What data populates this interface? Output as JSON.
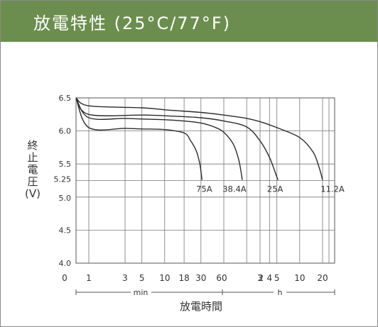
{
  "header": {
    "title": "放電特性 (25°C/77°F)",
    "background": "#6b8e4e"
  },
  "chart_data": {
    "type": "line",
    "title": "放電特性 (25°C/77°F)",
    "ylabel": [
      "終",
      "止",
      "電",
      "圧",
      "(V)"
    ],
    "xlabel": "放電時間",
    "y_ticks": [
      "4.0",
      "4.5",
      "5.0",
      "5.25",
      "5.5",
      "6.0",
      "6.5"
    ],
    "ylim": [
      4.0,
      6.5
    ],
    "x_origin_label": "0",
    "x_ticks": [
      "1",
      "3",
      "5",
      "10",
      "18",
      "30",
      "60",
      "2",
      "3",
      "4",
      "5",
      "10",
      "20"
    ],
    "x_ticks_minutes": [
      1,
      3,
      5,
      10,
      18,
      30,
      60
    ],
    "x_ticks_hours": [
      2,
      3,
      4,
      5,
      10,
      20
    ],
    "unit_min": "min",
    "unit_h": "h",
    "grid": true,
    "series": [
      {
        "name": "75A",
        "points": [
          [
            0,
            6.5
          ],
          [
            1,
            6.05
          ],
          [
            3,
            6.04
          ],
          [
            5,
            6.03
          ],
          [
            10,
            6.02
          ],
          [
            18,
            5.97
          ],
          [
            22,
            5.85
          ],
          [
            26,
            5.7
          ],
          [
            29,
            5.5
          ],
          [
            31,
            5.26
          ]
        ]
      },
      {
        "name": "38.4A",
        "points": [
          [
            0,
            6.5
          ],
          [
            1,
            6.2
          ],
          [
            3,
            6.19
          ],
          [
            5,
            6.18
          ],
          [
            10,
            6.17
          ],
          [
            18,
            6.15
          ],
          [
            30,
            6.12
          ],
          [
            45,
            6.06
          ],
          [
            60,
            5.98
          ],
          [
            80,
            5.8
          ],
          [
            95,
            5.55
          ],
          [
            105,
            5.26
          ]
        ]
      },
      {
        "name": "25A",
        "points": [
          [
            0,
            6.5
          ],
          [
            1,
            6.25
          ],
          [
            5,
            6.24
          ],
          [
            10,
            6.23
          ],
          [
            30,
            6.2
          ],
          [
            60,
            6.15
          ],
          [
            120,
            6.06
          ],
          [
            180,
            5.85
          ],
          [
            240,
            5.6
          ],
          [
            290,
            5.35
          ],
          [
            310,
            5.26
          ]
        ]
      },
      {
        "name": "11.2A",
        "points": [
          [
            0,
            6.5
          ],
          [
            1,
            6.38
          ],
          [
            5,
            6.35
          ],
          [
            10,
            6.32
          ],
          [
            30,
            6.28
          ],
          [
            60,
            6.24
          ],
          [
            120,
            6.19
          ],
          [
            180,
            6.14
          ],
          [
            300,
            6.05
          ],
          [
            600,
            5.9
          ],
          [
            900,
            5.68
          ],
          [
            1080,
            5.45
          ],
          [
            1200,
            5.26
          ]
        ]
      }
    ]
  }
}
